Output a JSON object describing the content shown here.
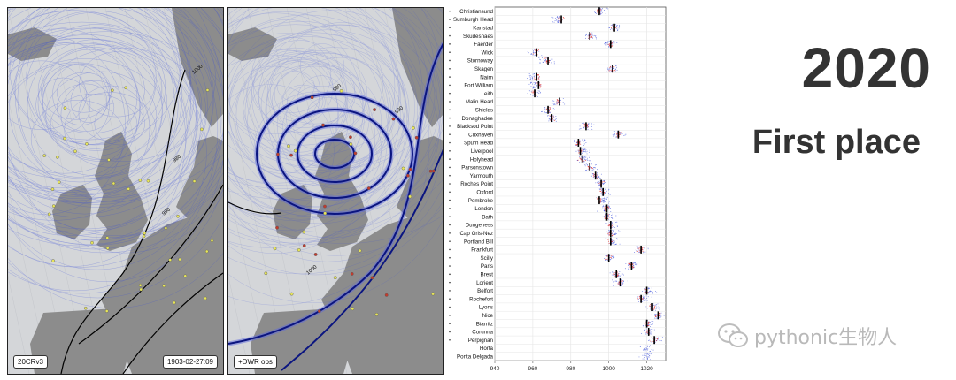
{
  "maps": {
    "left_label": "20CRv3",
    "left_date": "1903-02-27:09",
    "right_label": "+DWR obs",
    "isobar_labels": [
      "980",
      "990",
      "1000"
    ]
  },
  "headline": "2020",
  "subhead": "First place",
  "watermark": "pythonic生物人",
  "colors": {
    "ensemble_blue": "#3b4fd8",
    "obs_red": "#e8413c",
    "mean_black": "#000000",
    "map_sea": "#d4d6d9",
    "map_land": "#8c8c8c",
    "isobar": "#0b1580"
  },
  "chart_data": {
    "type": "scatter",
    "title": "",
    "xlabel": "",
    "ylabel": "",
    "xlim": [
      940,
      1030
    ],
    "xticks": [
      940,
      960,
      980,
      1000,
      1020
    ],
    "grid": true,
    "stations": [
      {
        "name": "Christiansund",
        "obs": 995,
        "ens": 995
      },
      {
        "name": "Sumburgh Head",
        "obs": 975,
        "ens": 973
      },
      {
        "name": "Karlstad",
        "obs": 1003,
        "ens": 1003
      },
      {
        "name": "Skudesnaes",
        "obs": 990,
        "ens": 990
      },
      {
        "name": "Faerder",
        "obs": 1001,
        "ens": 1001
      },
      {
        "name": "Wick",
        "obs": 962,
        "ens": 961
      },
      {
        "name": "Stornoway",
        "obs": 968,
        "ens": 967
      },
      {
        "name": "Skagen",
        "obs": 1002,
        "ens": 1002
      },
      {
        "name": "Nairn",
        "obs": 962,
        "ens": 960
      },
      {
        "name": "Fort William",
        "obs": 963,
        "ens": 961
      },
      {
        "name": "Leith",
        "obs": 961,
        "ens": 961
      },
      {
        "name": "Malin Head",
        "obs": 974,
        "ens": 973
      },
      {
        "name": "Shields",
        "obs": 968,
        "ens": 968
      },
      {
        "name": "Donaghadee",
        "obs": 970,
        "ens": 970
      },
      {
        "name": "Blacksod Point",
        "obs": 988,
        "ens": 988
      },
      {
        "name": "Cuxhaven",
        "obs": 1005,
        "ens": 1005
      },
      {
        "name": "Spurn Head",
        "obs": 984,
        "ens": 985
      },
      {
        "name": "Liverpool",
        "obs": 985,
        "ens": 986
      },
      {
        "name": "Holyhead",
        "obs": 986,
        "ens": 987
      },
      {
        "name": "Parsonstown",
        "obs": 990,
        "ens": 991
      },
      {
        "name": "Yarmouth",
        "obs": 993,
        "ens": 994
      },
      {
        "name": "Roches Point",
        "obs": 996,
        "ens": 996
      },
      {
        "name": "Oxford",
        "obs": 997,
        "ens": 998
      },
      {
        "name": "Pembroke",
        "obs": 995,
        "ens": 997
      },
      {
        "name": "London",
        "obs": 999,
        "ens": 999
      },
      {
        "name": "Bath",
        "obs": 999,
        "ens": 1000
      },
      {
        "name": "Dungeness",
        "obs": 1001,
        "ens": 1002
      },
      {
        "name": "Cap Gris-Nez",
        "obs": 1001,
        "ens": 1002
      },
      {
        "name": "Portland Bill",
        "obs": 1001,
        "ens": 1002
      },
      {
        "name": "Frankfurt",
        "obs": 1017,
        "ens": 1017
      },
      {
        "name": "Scilly",
        "obs": 1000,
        "ens": 1001
      },
      {
        "name": "Paris",
        "obs": 1012,
        "ens": 1012
      },
      {
        "name": "Brest",
        "obs": 1004,
        "ens": 1004
      },
      {
        "name": "Lorient",
        "obs": 1006,
        "ens": 1006
      },
      {
        "name": "Belfort",
        "obs": 1020,
        "ens": 1021
      },
      {
        "name": "Rochefort",
        "obs": 1017,
        "ens": 1018
      },
      {
        "name": "Lyons",
        "obs": 1023,
        "ens": 1024
      },
      {
        "name": "Nice",
        "obs": 1026,
        "ens": 1026
      },
      {
        "name": "Biarritz",
        "obs": 1020,
        "ens": 1021
      },
      {
        "name": "Corunna",
        "obs": 1021,
        "ens": 1021
      },
      {
        "name": "Perpignan",
        "obs": 1024,
        "ens": 1025
      },
      {
        "name": "Horta",
        "obs": null,
        "ens": 1020
      },
      {
        "name": "Ponta Delgada",
        "obs": null,
        "ens": 1020
      }
    ]
  }
}
